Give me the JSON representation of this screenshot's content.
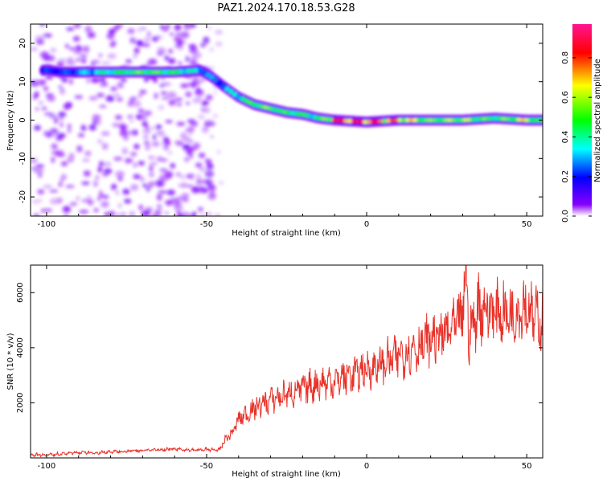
{
  "title": "PAZ1.2024.170.18.53.G28",
  "chart_data": [
    {
      "type": "heatmap",
      "xlabel": "Height of straight line (km)",
      "ylabel": "Frequency (Hz)",
      "xlim": [
        -105,
        55
      ],
      "ylim": [
        -25,
        25
      ],
      "xticks": [
        -100,
        -50,
        0,
        50
      ],
      "yticks": [
        -20,
        -10,
        0,
        10,
        20
      ],
      "colorbar": {
        "label": "Normalized spectral amplitude",
        "range": [
          0,
          0.97
        ],
        "ticks": [
          0.0,
          0.2,
          0.4,
          0.6,
          0.8
        ],
        "colormap": [
          "#ffffff",
          "#8800ff",
          "#0000ff",
          "#00ffff",
          "#00ff00",
          "#ffff00",
          "#ff0000",
          "#ff1493"
        ]
      },
      "ridge": {
        "x": [
          -100,
          -95,
          -80,
          -70,
          -60,
          -52,
          -48,
          -45,
          -40,
          -35,
          -30,
          -25,
          -20,
          -15,
          -10,
          0,
          10,
          20,
          30,
          40,
          50,
          55
        ],
        "y": [
          13,
          12.5,
          12.5,
          12.5,
          12.5,
          13,
          11,
          9,
          6,
          4,
          3,
          2,
          1.5,
          0.5,
          0,
          -0.5,
          0,
          0,
          0,
          0.5,
          0,
          0
        ],
        "amplitude": [
          0.3,
          0.3,
          0.5,
          0.6,
          0.55,
          0.4,
          0.35,
          0.35,
          0.5,
          0.6,
          0.6,
          0.55,
          0.55,
          0.5,
          0.85,
          0.85,
          0.75,
          0.6,
          0.65,
          0.55,
          0.7,
          0.5
        ]
      }
    },
    {
      "type": "line",
      "xlabel": "Height of straight line (km)",
      "ylabel": "SNR (10 * v/v)",
      "xlim": [
        -105,
        55
      ],
      "ylim": [
        0,
        7000
      ],
      "xticks": [
        -100,
        -50,
        0,
        50
      ],
      "yticks": [
        2000,
        4000,
        6000
      ],
      "color": "#e8332a",
      "series": [
        {
          "x": [
            -105,
            -100,
            -95,
            -90,
            -85,
            -80,
            -75,
            -70,
            -65,
            -60,
            -55,
            -50,
            -46,
            -44,
            -42,
            -40,
            -35,
            -30,
            -25,
            -20,
            -15,
            -10,
            -5,
            0,
            5,
            10,
            15,
            20,
            25,
            28,
            30,
            31,
            32,
            35,
            40,
            45,
            50,
            52,
            55
          ],
          "values": [
            120,
            110,
            150,
            200,
            180,
            220,
            250,
            270,
            300,
            320,
            280,
            300,
            280,
            700,
            900,
            1400,
            1800,
            2100,
            2300,
            2500,
            2700,
            2800,
            3000,
            3200,
            3400,
            3700,
            4000,
            4300,
            4500,
            4800,
            5200,
            6900,
            4400,
            5500,
            5300,
            5200,
            5600,
            5100,
            5000
          ]
        }
      ]
    }
  ]
}
